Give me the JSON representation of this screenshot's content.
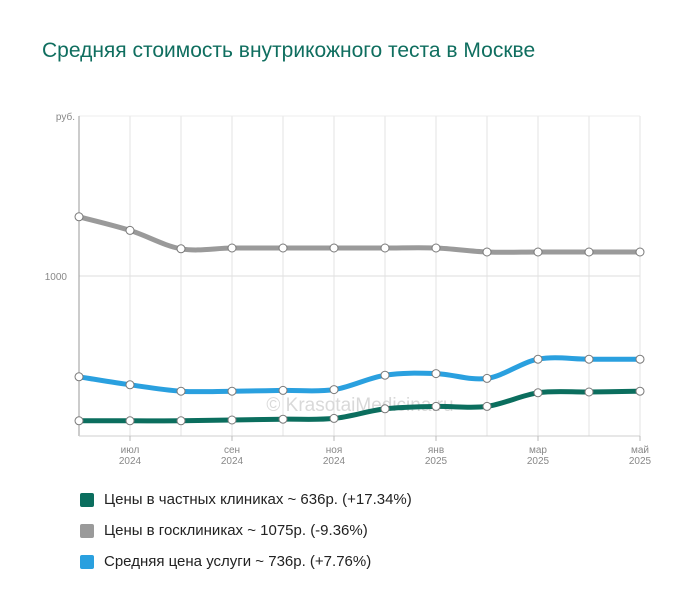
{
  "chart_data": {
    "type": "line",
    "title": "Средняя стоимость внутрикожного теста в Москве",
    "ylabel": "руб.",
    "ylim": [
      0,
      2000
    ],
    "y_ticks": [
      1000
    ],
    "x_ticks": [
      {
        "index": 1,
        "label": [
          "июл",
          "2024"
        ]
      },
      {
        "index": 3,
        "label": [
          "сен",
          "2024"
        ]
      },
      {
        "index": 5,
        "label": [
          "ноя",
          "2024"
        ]
      },
      {
        "index": 7,
        "label": [
          "янв",
          "2025"
        ]
      },
      {
        "index": 9,
        "label": [
          "мар",
          "2025"
        ]
      },
      {
        "index": 11,
        "label": [
          "май",
          "2025"
        ]
      }
    ],
    "x": [
      "2024-06",
      "2024-07",
      "2024-08",
      "2024-09",
      "2024-10",
      "2024-11",
      "2024-12",
      "2025-01",
      "2025-02",
      "2025-03",
      "2025-04",
      "2025-05"
    ],
    "series": [
      {
        "name": "Цены в частных клиниках",
        "color": "#0b6e5e",
        "values": [
          95,
          95,
          95,
          100,
          105,
          110,
          170,
          185,
          185,
          270,
          275,
          280
        ]
      },
      {
        "name": "Цены в госклиниках",
        "color": "#9a9a9a",
        "values": [
          1370,
          1285,
          1170,
          1175,
          1175,
          1175,
          1175,
          1175,
          1150,
          1150,
          1150,
          1150
        ]
      },
      {
        "name": "Средняя цена услуги",
        "color": "#2aa0df",
        "values": [
          370,
          320,
          280,
          280,
          285,
          290,
          380,
          390,
          360,
          480,
          480,
          480
        ]
      }
    ],
    "watermark": "© KrasotaiMedicina.ru",
    "grid": true
  },
  "legend": [
    {
      "text": "Цены в частных клиниках ~ 636р. (+17.34%)",
      "color": "#0b6e5e"
    },
    {
      "text": "Цены в госклиниках ~ 1075р. (-9.36%)",
      "color": "#9a9a9a"
    },
    {
      "text": "Средняя цена услуги ~ 736р. (+7.76%)",
      "color": "#2aa0df"
    }
  ]
}
